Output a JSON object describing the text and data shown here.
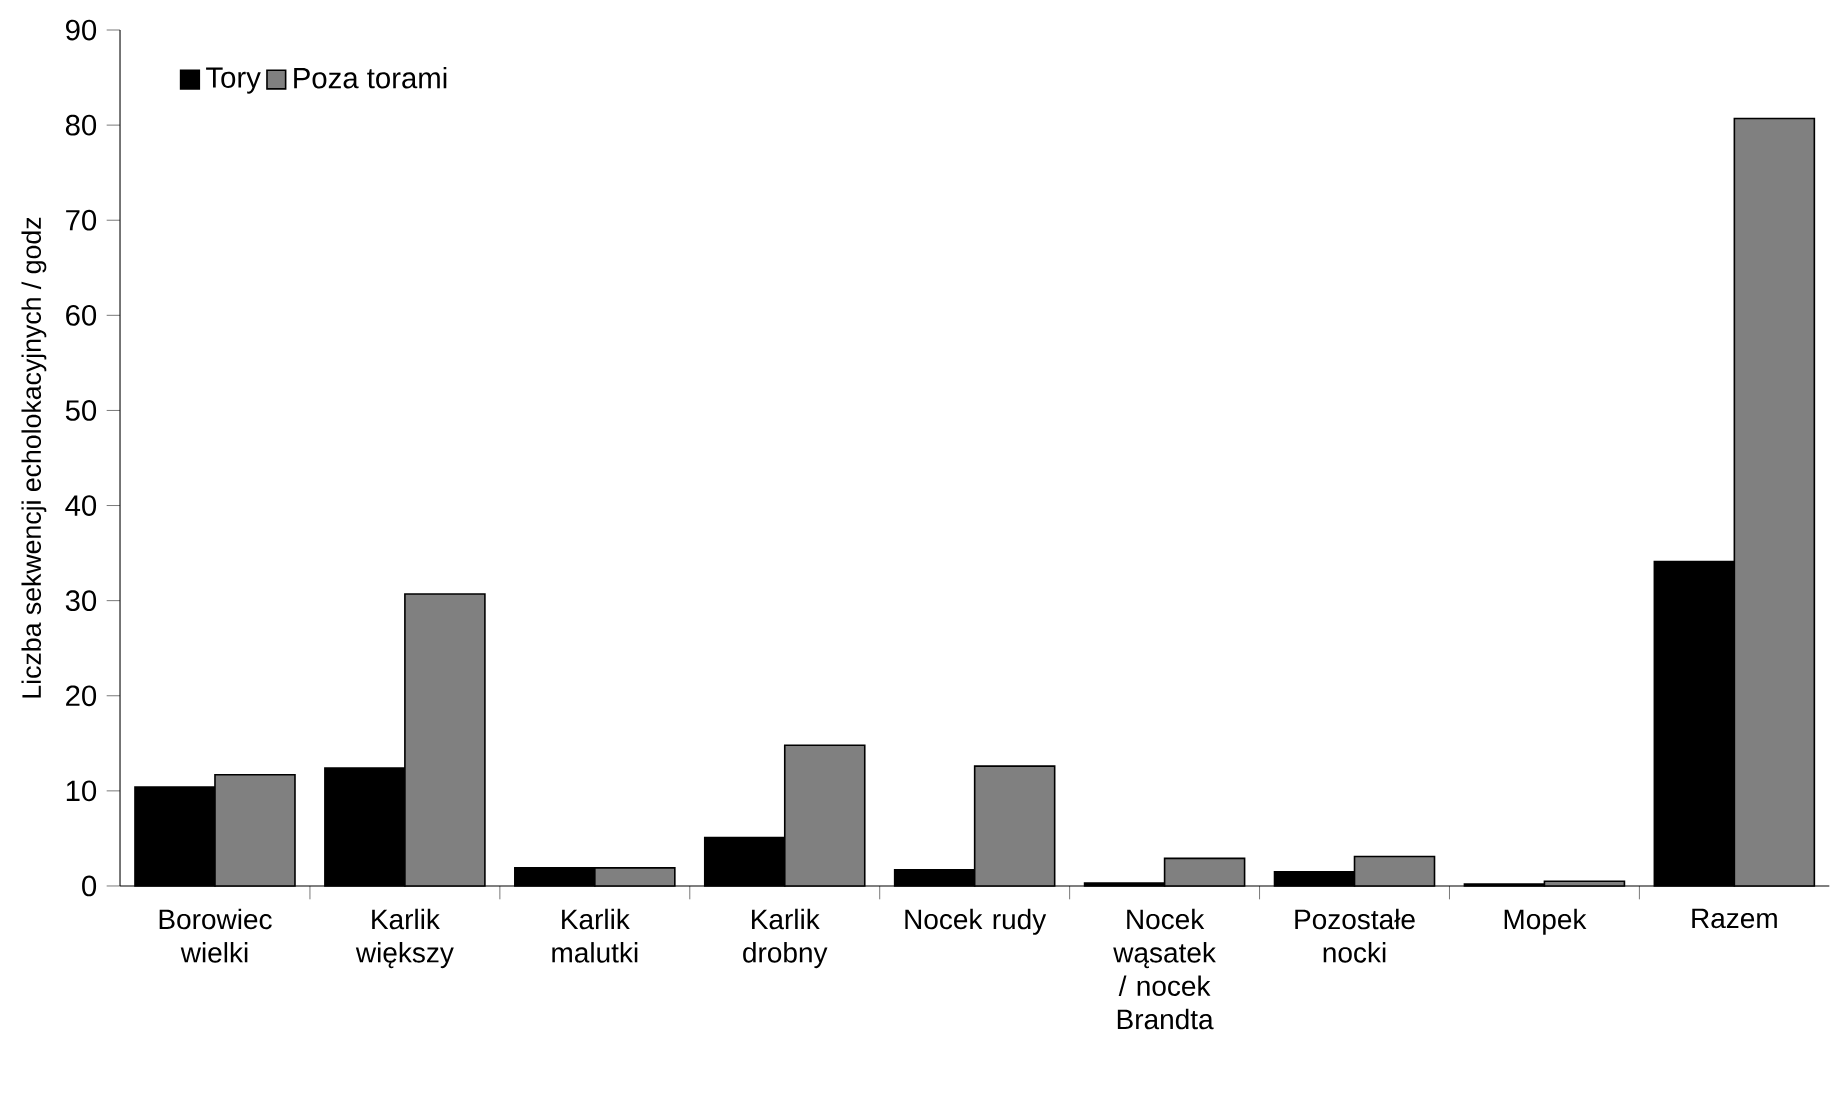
{
  "chart_data": {
    "type": "bar",
    "ylabel": "Liczba sekwencji echolokacyjnych / godz",
    "categories": [
      "Borowiec wielki",
      "Karlik większy",
      "Karlik malutki",
      "Karlik drobny",
      "Nocek rudy",
      "Nocek wąsatek / nocek Brandta",
      "Pozostałe nocki",
      "Mopek",
      "Razem"
    ],
    "series": [
      {
        "name": "Tory",
        "color": "#000000",
        "values": [
          10.4,
          12.4,
          1.9,
          5.1,
          1.7,
          0.3,
          1.5,
          0.2,
          34.1
        ]
      },
      {
        "name": "Poza torami",
        "color": "#808080",
        "values": [
          11.7,
          30.7,
          1.9,
          14.8,
          12.6,
          2.9,
          3.1,
          0.5,
          80.7
        ]
      }
    ],
    "ylim": [
      0,
      90
    ],
    "yticks": [
      0,
      10,
      20,
      30,
      40,
      50,
      60,
      70,
      80,
      90
    ],
    "grid": false,
    "legend": "top left"
  }
}
